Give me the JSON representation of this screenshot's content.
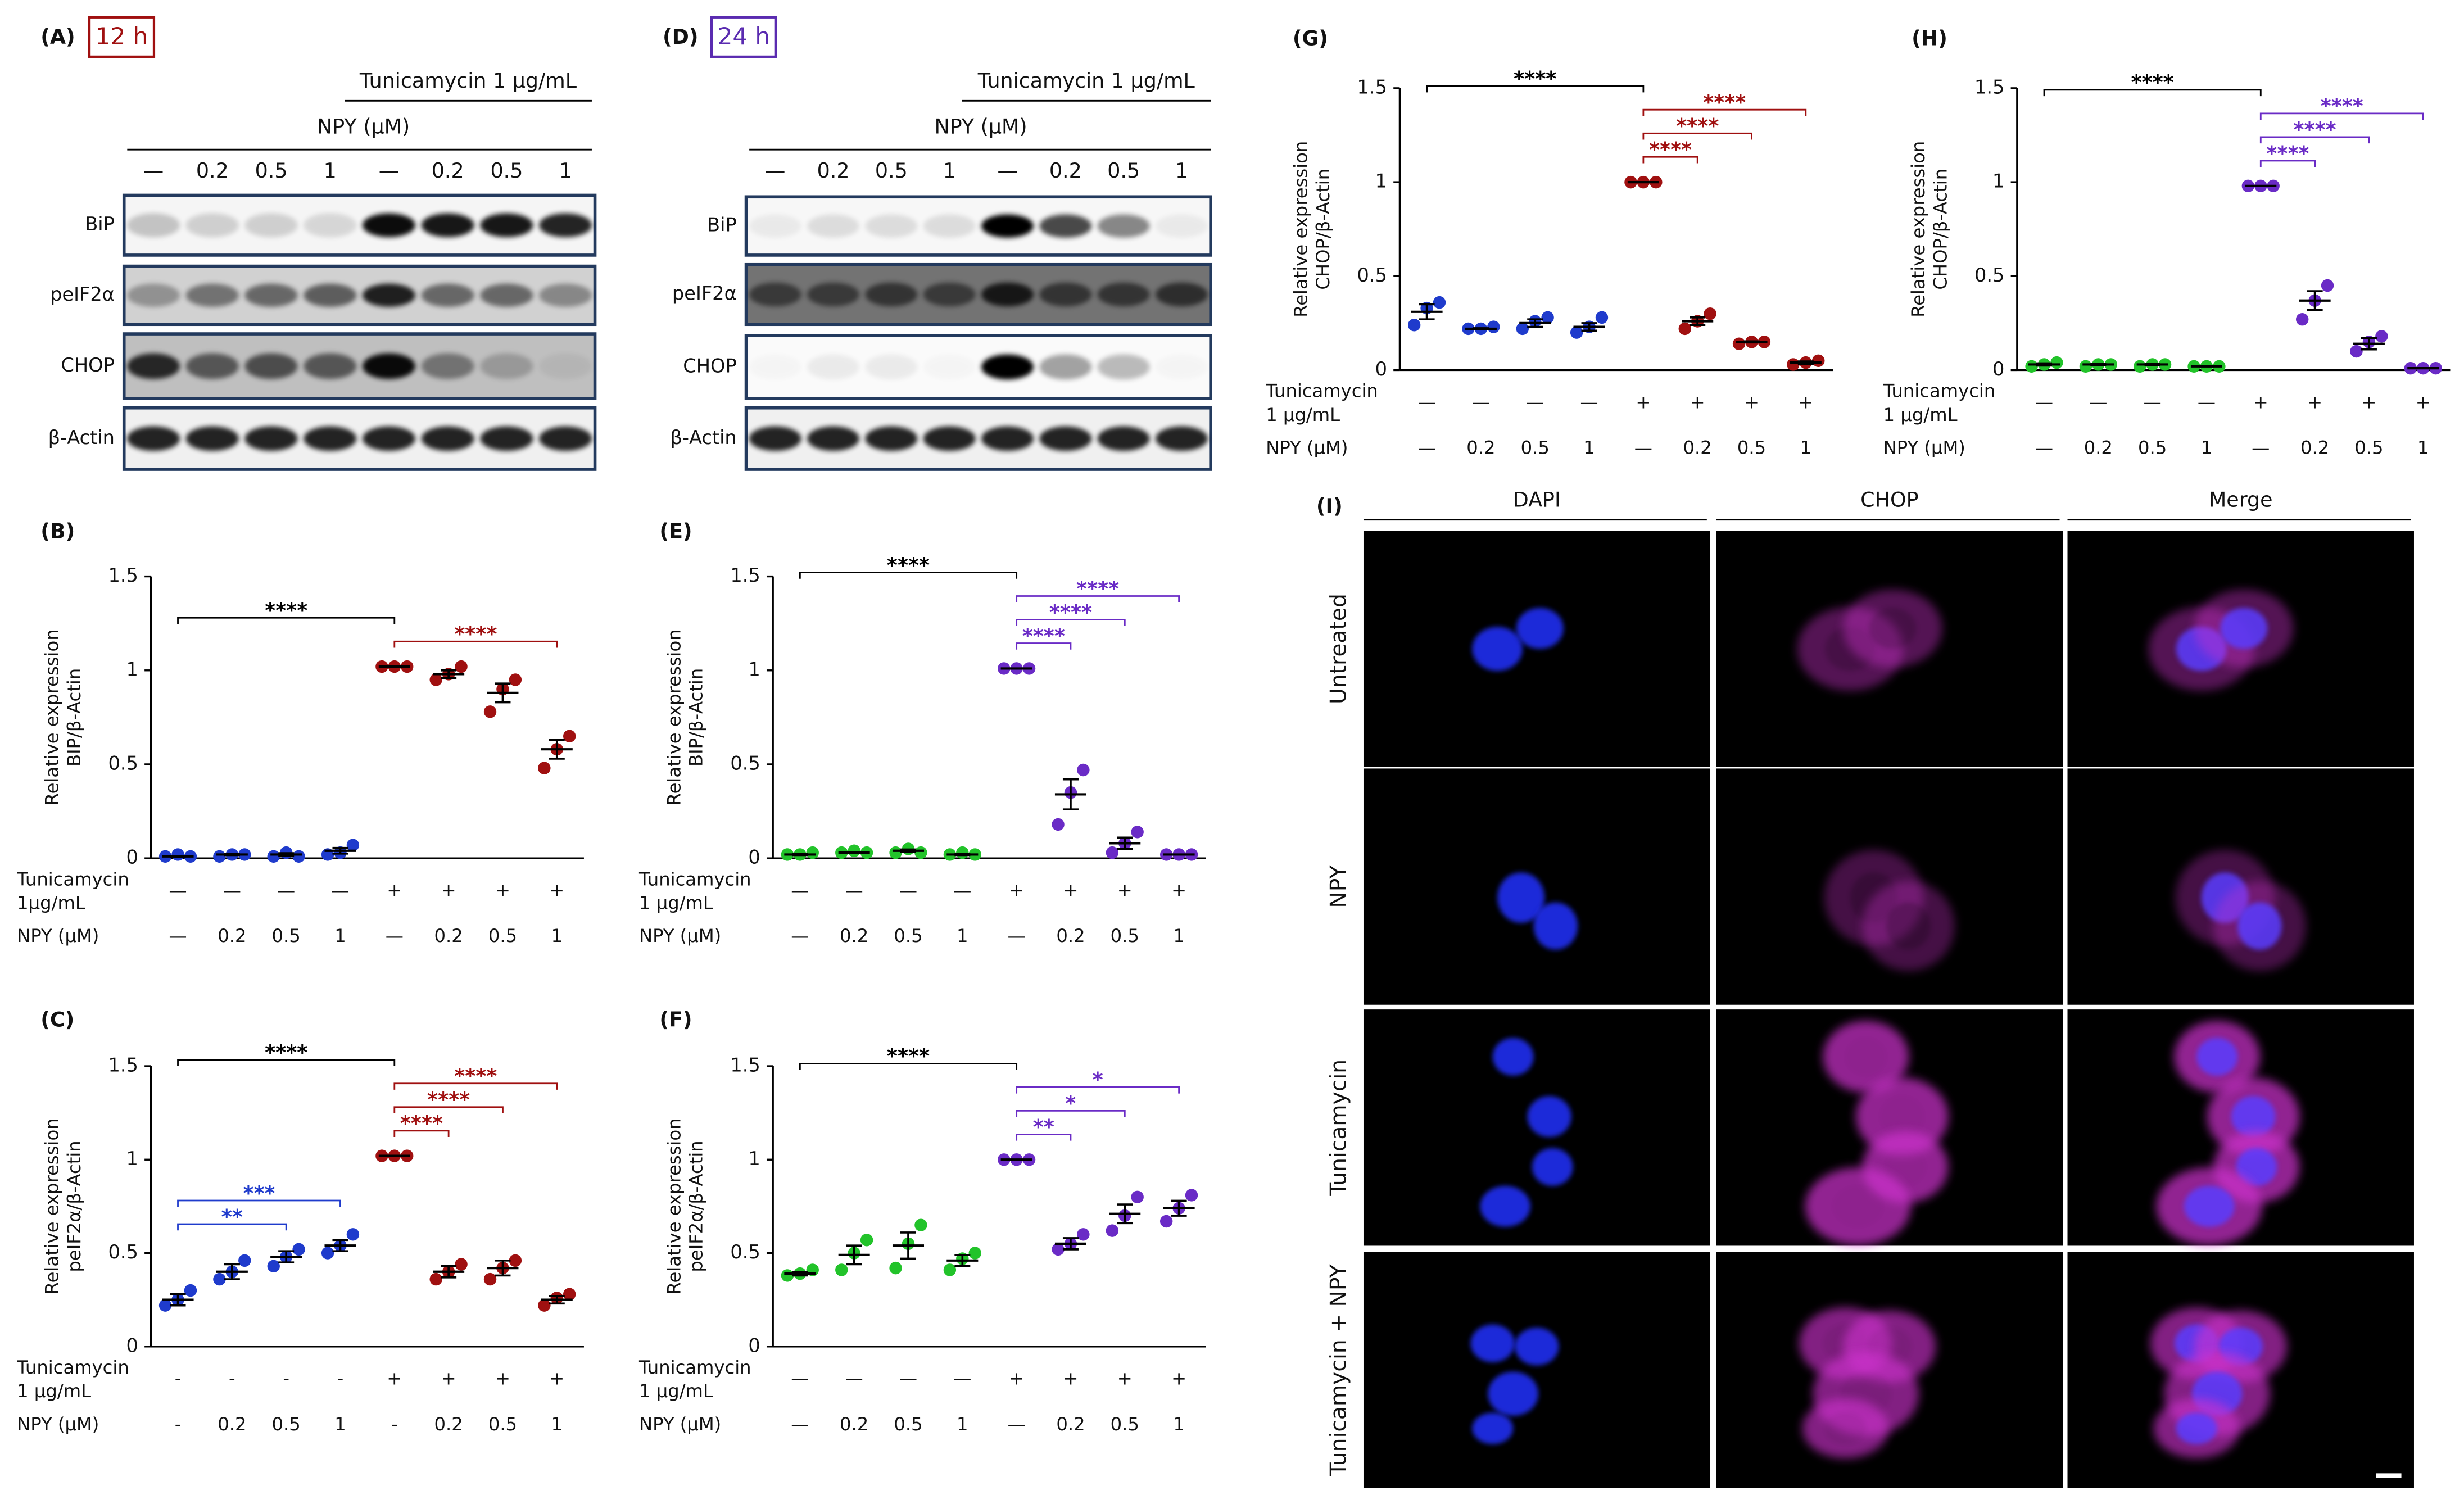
{
  "blots": [
    {
      "label": "(A)",
      "time": "12 h",
      "color": "#a01010",
      "treatment": "Tunicamycin 1 μg/mL",
      "npy_header": "NPY (μM)",
      "lanes": [
        "—",
        "0.2",
        "0.5",
        "1",
        "—",
        "0.2",
        "0.5",
        "1"
      ],
      "rows": [
        "BiP",
        "peIF2α",
        "CHOP",
        "β-Actin"
      ]
    },
    {
      "label": "(D)",
      "time": "24 h",
      "color": "#5a2bb0",
      "treatment": "Tunicamycin 1 μg/mL",
      "npy_header": "NPY (μM)",
      "lanes": [
        "—",
        "0.2",
        "0.5",
        "1",
        "—",
        "0.2",
        "0.5",
        "1"
      ],
      "rows": [
        "BiP",
        "peIF2α",
        "CHOP",
        "β-Actin"
      ]
    }
  ],
  "imaging": {
    "label": "(I)",
    "columns": [
      "DAPI",
      "CHOP",
      "Merge"
    ],
    "rows": [
      "Untreated",
      "NPY",
      "Tunicamycin",
      "Tunicamycin + NPY"
    ]
  },
  "chart_data": [
    {
      "type": "dot",
      "title": "(B)",
      "ylabel": [
        "Relative expression",
        "BIP/β-Actin"
      ],
      "ylim": [
        0,
        1.5
      ],
      "yticks": [
        0,
        0.5,
        1,
        1.5
      ],
      "x_rows": [
        {
          "label": [
            "Tunicamycin",
            "1μg/mL"
          ],
          "values": [
            "—",
            "—",
            "—",
            "—",
            "+",
            "+",
            "+",
            "+"
          ]
        },
        {
          "label": [
            "NPY (μM)"
          ],
          "values": [
            "—",
            "0.2",
            "0.5",
            "1",
            "—",
            "0.2",
            "0.5",
            "1"
          ]
        }
      ],
      "groups": [
        {
          "color": "#1f3bcc",
          "points": [
            0.01,
            0.02,
            0.01
          ],
          "mean": 0.01,
          "sem": 0.003
        },
        {
          "color": "#1f3bcc",
          "points": [
            0.01,
            0.02,
            0.02
          ],
          "mean": 0.02,
          "sem": 0.003
        },
        {
          "color": "#1f3bcc",
          "points": [
            0.01,
            0.03,
            0.01
          ],
          "mean": 0.02,
          "sem": 0.007
        },
        {
          "color": "#1f3bcc",
          "points": [
            0.02,
            0.03,
            0.07
          ],
          "mean": 0.04,
          "sem": 0.015
        },
        {
          "color": "#a01010",
          "points": [
            1.02,
            1.02,
            1.02
          ],
          "mean": 1.02,
          "sem": 0
        },
        {
          "color": "#a01010",
          "points": [
            0.95,
            0.98,
            1.02
          ],
          "mean": 0.98,
          "sem": 0.02
        },
        {
          "color": "#a01010",
          "points": [
            0.78,
            0.9,
            0.95
          ],
          "mean": 0.88,
          "sem": 0.05
        },
        {
          "color": "#a01010",
          "points": [
            0.48,
            0.58,
            0.65
          ],
          "mean": 0.58,
          "sem": 0.05
        }
      ],
      "brackets": [
        {
          "from": 0,
          "to": 4,
          "label": "****",
          "color": "#000000"
        },
        {
          "from": 4,
          "to": 7,
          "label": "****",
          "color": "#a01010"
        }
      ]
    },
    {
      "type": "dot",
      "title": "(C)",
      "ylabel": [
        "Relative expression",
        "peIF2α/β-Actin"
      ],
      "ylim": [
        0,
        1.5
      ],
      "yticks": [
        0,
        0.5,
        1,
        1.5
      ],
      "x_rows": [
        {
          "label": [
            "Tunicamycin",
            "1 μg/mL"
          ],
          "values": [
            "-",
            "-",
            "-",
            "-",
            "+",
            "+",
            "+",
            "+"
          ]
        },
        {
          "label": [
            "NPY (μM)"
          ],
          "values": [
            "-",
            "0.2",
            "0.5",
            "1",
            "-",
            "0.2",
            "0.5",
            "1"
          ]
        }
      ],
      "groups": [
        {
          "color": "#1f3bcc",
          "points": [
            0.22,
            0.25,
            0.3
          ],
          "mean": 0.25,
          "sem": 0.03
        },
        {
          "color": "#1f3bcc",
          "points": [
            0.36,
            0.4,
            0.46
          ],
          "mean": 0.4,
          "sem": 0.04
        },
        {
          "color": "#1f3bcc",
          "points": [
            0.43,
            0.48,
            0.52
          ],
          "mean": 0.48,
          "sem": 0.03
        },
        {
          "color": "#1f3bcc",
          "points": [
            0.5,
            0.54,
            0.6
          ],
          "mean": 0.54,
          "sem": 0.03
        },
        {
          "color": "#a01010",
          "points": [
            1.02,
            1.02,
            1.02
          ],
          "mean": 1.02,
          "sem": 0
        },
        {
          "color": "#a01010",
          "points": [
            0.36,
            0.4,
            0.44
          ],
          "mean": 0.4,
          "sem": 0.03
        },
        {
          "color": "#a01010",
          "points": [
            0.36,
            0.42,
            0.46
          ],
          "mean": 0.42,
          "sem": 0.04
        },
        {
          "color": "#a01010",
          "points": [
            0.22,
            0.26,
            0.28
          ],
          "mean": 0.25,
          "sem": 0.02
        }
      ],
      "brackets": [
        {
          "from": 0,
          "to": 2,
          "label": "**",
          "color": "#1f3bcc"
        },
        {
          "from": 0,
          "to": 3,
          "label": "***",
          "color": "#1f3bcc"
        },
        {
          "from": 0,
          "to": 4,
          "label": "****",
          "color": "#000000"
        },
        {
          "from": 4,
          "to": 5,
          "label": "****",
          "color": "#a01010"
        },
        {
          "from": 4,
          "to": 6,
          "label": "****",
          "color": "#a01010"
        },
        {
          "from": 4,
          "to": 7,
          "label": "****",
          "color": "#a01010"
        }
      ]
    },
    {
      "type": "dot",
      "title": "(E)",
      "ylabel": [
        "Relative expression",
        "BIP/β-Actin"
      ],
      "ylim": [
        0,
        1.5
      ],
      "yticks": [
        0,
        0.5,
        1,
        1.5
      ],
      "x_rows": [
        {
          "label": [
            "Tunicamycin",
            "1 μg/mL"
          ],
          "values": [
            "—",
            "—",
            "—",
            "—",
            "+",
            "+",
            "+",
            "+"
          ]
        },
        {
          "label": [
            "NPY (μM)"
          ],
          "values": [
            "—",
            "0.2",
            "0.5",
            "1",
            "—",
            "0.2",
            "0.5",
            "1"
          ]
        }
      ],
      "groups": [
        {
          "color": "#22c32a",
          "points": [
            0.02,
            0.02,
            0.03
          ],
          "mean": 0.02,
          "sem": 0.003
        },
        {
          "color": "#22c32a",
          "points": [
            0.03,
            0.04,
            0.03
          ],
          "mean": 0.03,
          "sem": 0.003
        },
        {
          "color": "#22c32a",
          "points": [
            0.03,
            0.05,
            0.03
          ],
          "mean": 0.04,
          "sem": 0.007
        },
        {
          "color": "#22c32a",
          "points": [
            0.02,
            0.03,
            0.02
          ],
          "mean": 0.02,
          "sem": 0.003
        },
        {
          "color": "#6a2bc6",
          "points": [
            1.01,
            1.01,
            1.01
          ],
          "mean": 1.01,
          "sem": 0
        },
        {
          "color": "#6a2bc6",
          "points": [
            0.18,
            0.35,
            0.47
          ],
          "mean": 0.34,
          "sem": 0.08
        },
        {
          "color": "#6a2bc6",
          "points": [
            0.03,
            0.08,
            0.14
          ],
          "mean": 0.08,
          "sem": 0.03
        },
        {
          "color": "#6a2bc6",
          "points": [
            0.02,
            0.02,
            0.02
          ],
          "mean": 0.02,
          "sem": 0
        }
      ],
      "brackets": [
        {
          "from": 0,
          "to": 4,
          "label": "****",
          "color": "#000000"
        },
        {
          "from": 4,
          "to": 5,
          "label": "****",
          "color": "#6a2bc6"
        },
        {
          "from": 4,
          "to": 6,
          "label": "****",
          "color": "#6a2bc6"
        },
        {
          "from": 4,
          "to": 7,
          "label": "****",
          "color": "#6a2bc6"
        }
      ]
    },
    {
      "type": "dot",
      "title": "(F)",
      "ylabel": [
        "Relative expression",
        "peIF2α/β-Actin"
      ],
      "ylim": [
        0,
        1.5
      ],
      "yticks": [
        0,
        0.5,
        1,
        1.5
      ],
      "x_rows": [
        {
          "label": [
            "Tunicamycin",
            "1 μg/mL"
          ],
          "values": [
            "—",
            "—",
            "—",
            "—",
            "+",
            "+",
            "+",
            "+"
          ]
        },
        {
          "label": [
            "NPY (μM)"
          ],
          "values": [
            "—",
            "0.2",
            "0.5",
            "1",
            "—",
            "0.2",
            "0.5",
            "1"
          ]
        }
      ],
      "groups": [
        {
          "color": "#22c32a",
          "points": [
            0.38,
            0.39,
            0.41
          ],
          "mean": 0.39,
          "sem": 0.01
        },
        {
          "color": "#22c32a",
          "points": [
            0.41,
            0.5,
            0.57
          ],
          "mean": 0.49,
          "sem": 0.05
        },
        {
          "color": "#22c32a",
          "points": [
            0.42,
            0.55,
            0.65
          ],
          "mean": 0.54,
          "sem": 0.07
        },
        {
          "color": "#22c32a",
          "points": [
            0.41,
            0.47,
            0.5
          ],
          "mean": 0.46,
          "sem": 0.03
        },
        {
          "color": "#6a2bc6",
          "points": [
            1.0,
            1.0,
            1.0
          ],
          "mean": 1.0,
          "sem": 0
        },
        {
          "color": "#6a2bc6",
          "points": [
            0.52,
            0.55,
            0.6
          ],
          "mean": 0.55,
          "sem": 0.03
        },
        {
          "color": "#6a2bc6",
          "points": [
            0.62,
            0.7,
            0.8
          ],
          "mean": 0.71,
          "sem": 0.05
        },
        {
          "color": "#6a2bc6",
          "points": [
            0.67,
            0.74,
            0.81
          ],
          "mean": 0.74,
          "sem": 0.04
        }
      ],
      "brackets": [
        {
          "from": 0,
          "to": 4,
          "label": "****",
          "color": "#000000"
        },
        {
          "from": 4,
          "to": 5,
          "label": "**",
          "color": "#6a2bc6"
        },
        {
          "from": 4,
          "to": 6,
          "label": "*",
          "color": "#6a2bc6"
        },
        {
          "from": 4,
          "to": 7,
          "label": "*",
          "color": "#6a2bc6"
        }
      ]
    },
    {
      "type": "dot",
      "title": "(G)",
      "ylabel": [
        "Relative expression",
        "CHOP/β-Actin"
      ],
      "ylim": [
        0,
        1.5
      ],
      "yticks": [
        0,
        0.5,
        1,
        1.5
      ],
      "x_rows": [
        {
          "label": [
            "Tunicamycin",
            "1 μg/mL"
          ],
          "values": [
            "—",
            "—",
            "—",
            "—",
            "+",
            "+",
            "+",
            "+"
          ]
        },
        {
          "label": [
            "NPY (μM)"
          ],
          "values": [
            "—",
            "0.2",
            "0.5",
            "1",
            "—",
            "0.2",
            "0.5",
            "1"
          ]
        }
      ],
      "groups": [
        {
          "color": "#1f3bcc",
          "points": [
            0.24,
            0.33,
            0.36
          ],
          "mean": 0.31,
          "sem": 0.04
        },
        {
          "color": "#1f3bcc",
          "points": [
            0.22,
            0.22,
            0.23
          ],
          "mean": 0.22,
          "sem": 0.003
        },
        {
          "color": "#1f3bcc",
          "points": [
            0.22,
            0.26,
            0.28
          ],
          "mean": 0.25,
          "sem": 0.02
        },
        {
          "color": "#1f3bcc",
          "points": [
            0.2,
            0.23,
            0.28
          ],
          "mean": 0.23,
          "sem": 0.02
        },
        {
          "color": "#a01010",
          "points": [
            1.0,
            1.0,
            1.0
          ],
          "mean": 1.0,
          "sem": 0
        },
        {
          "color": "#a01010",
          "points": [
            0.22,
            0.26,
            0.3
          ],
          "mean": 0.26,
          "sem": 0.02
        },
        {
          "color": "#a01010",
          "points": [
            0.14,
            0.15,
            0.15
          ],
          "mean": 0.15,
          "sem": 0.003
        },
        {
          "color": "#a01010",
          "points": [
            0.03,
            0.04,
            0.05
          ],
          "mean": 0.04,
          "sem": 0.006
        }
      ],
      "brackets": [
        {
          "from": 0,
          "to": 4,
          "label": "****",
          "color": "#000000"
        },
        {
          "from": 4,
          "to": 5,
          "label": "****",
          "color": "#a01010"
        },
        {
          "from": 4,
          "to": 6,
          "label": "****",
          "color": "#a01010"
        },
        {
          "from": 4,
          "to": 7,
          "label": "****",
          "color": "#a01010"
        }
      ]
    },
    {
      "type": "dot",
      "title": "(H)",
      "ylabel": [
        "Relative expression",
        "CHOP/β-Actin"
      ],
      "ylim": [
        0,
        1.5
      ],
      "yticks": [
        0,
        0.5,
        1,
        1.5
      ],
      "x_rows": [
        {
          "label": [
            "Tunicamycin",
            "1 μg/mL"
          ],
          "values": [
            "—",
            "—",
            "—",
            "—",
            "+",
            "+",
            "+",
            "+"
          ]
        },
        {
          "label": [
            "NPY (μM)"
          ],
          "values": [
            "—",
            "0.2",
            "0.5",
            "1",
            "—",
            "0.2",
            "0.5",
            "1"
          ]
        }
      ],
      "groups": [
        {
          "color": "#22c32a",
          "points": [
            0.02,
            0.03,
            0.04
          ],
          "mean": 0.03,
          "sem": 0.006
        },
        {
          "color": "#22c32a",
          "points": [
            0.02,
            0.03,
            0.03
          ],
          "mean": 0.03,
          "sem": 0.003
        },
        {
          "color": "#22c32a",
          "points": [
            0.02,
            0.03,
            0.03
          ],
          "mean": 0.03,
          "sem": 0.003
        },
        {
          "color": "#22c32a",
          "points": [
            0.02,
            0.02,
            0.02
          ],
          "mean": 0.02,
          "sem": 0
        },
        {
          "color": "#6a2bc6",
          "points": [
            0.98,
            0.98,
            0.98
          ],
          "mean": 0.98,
          "sem": 0
        },
        {
          "color": "#6a2bc6",
          "points": [
            0.27,
            0.37,
            0.45
          ],
          "mean": 0.37,
          "sem": 0.05
        },
        {
          "color": "#6a2bc6",
          "points": [
            0.1,
            0.15,
            0.18
          ],
          "mean": 0.14,
          "sem": 0.03
        },
        {
          "color": "#6a2bc6",
          "points": [
            0.01,
            0.01,
            0.01
          ],
          "mean": 0.01,
          "sem": 0
        }
      ],
      "brackets": [
        {
          "from": 0,
          "to": 4,
          "label": "****",
          "color": "#000000"
        },
        {
          "from": 4,
          "to": 5,
          "label": "****",
          "color": "#6a2bc6"
        },
        {
          "from": 4,
          "to": 6,
          "label": "****",
          "color": "#6a2bc6"
        },
        {
          "from": 4,
          "to": 7,
          "label": "****",
          "color": "#6a2bc6"
        }
      ]
    }
  ]
}
